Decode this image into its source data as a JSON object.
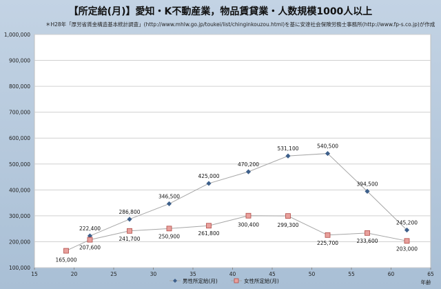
{
  "chart_data": {
    "type": "line",
    "title": "【所定給(月)】愛知・K不動産業，物品賃貸業・人数規模1000人以上",
    "subtitle": "＊H28年「厚労省賃金構造基本統計調査」(http://www.mhlw.go.jp/toukei/list/chinginkouzou.html)を基に安達社会保険労務士事務所(http://www.fp-s.co.jp)が作成",
    "xlabel": "年齢",
    "ylabel": "",
    "xlim": [
      15,
      65
    ],
    "ylim": [
      100000,
      1000000
    ],
    "xticks": [
      "15",
      "20",
      "25",
      "30",
      "35",
      "40",
      "45",
      "50",
      "55",
      "60",
      "65"
    ],
    "yticks": [
      "100,000",
      "200,000",
      "300,000",
      "400,000",
      "500,000",
      "600,000",
      "700,000",
      "800,000",
      "900,000",
      "1,000,000"
    ],
    "grid": "horizontal",
    "legend_position": "bottom",
    "series": [
      {
        "name": "男性所定給(月)",
        "color": "#3d5f8a",
        "marker": "diamond",
        "points": [
          {
            "x": 22,
            "y": 222400,
            "label": "222,400"
          },
          {
            "x": 27,
            "y": 286800,
            "label": "286,800"
          },
          {
            "x": 32,
            "y": 346500,
            "label": "346,500"
          },
          {
            "x": 37,
            "y": 425000,
            "label": "425,000"
          },
          {
            "x": 42,
            "y": 470200,
            "label": "470,200"
          },
          {
            "x": 47,
            "y": 531100,
            "label": "531,100"
          },
          {
            "x": 52,
            "y": 540500,
            "label": "540,500"
          },
          {
            "x": 57,
            "y": 394500,
            "label": "394,500"
          },
          {
            "x": 62,
            "y": 245200,
            "label": "245,200"
          }
        ]
      },
      {
        "name": "女性所定給(月)",
        "color": "#e8a09c",
        "marker": "square",
        "points": [
          {
            "x": 19,
            "y": 165000,
            "label": "165,000"
          },
          {
            "x": 22,
            "y": 207600,
            "label": "207,600"
          },
          {
            "x": 27,
            "y": 241700,
            "label": "241,700"
          },
          {
            "x": 32,
            "y": 250900,
            "label": "250,900"
          },
          {
            "x": 37,
            "y": 261800,
            "label": "261,800"
          },
          {
            "x": 42,
            "y": 300400,
            "label": "300,400"
          },
          {
            "x": 47,
            "y": 299300,
            "label": "299,300"
          },
          {
            "x": 52,
            "y": 225700,
            "label": "225,700"
          },
          {
            "x": 57,
            "y": 233600,
            "label": "233,600"
          },
          {
            "x": 62,
            "y": 203000,
            "label": "203,000"
          }
        ]
      }
    ]
  }
}
